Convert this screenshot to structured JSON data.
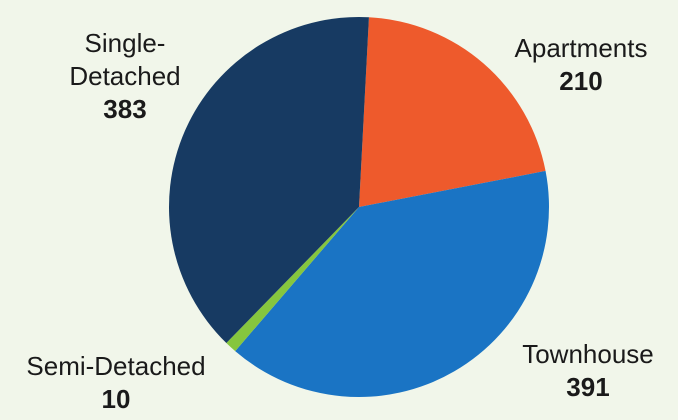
{
  "chart_data": {
    "type": "pie",
    "slices": [
      {
        "label": "Apartments",
        "value": 210,
        "color": "#ee5a2c"
      },
      {
        "label": "Townhouse",
        "value": 391,
        "color": "#1a74c4"
      },
      {
        "label": "Semi-Detached",
        "value": 10,
        "color": "#86c63e"
      },
      {
        "label": "Single-Detached",
        "value": 383,
        "color": "#173a62"
      }
    ],
    "value_labels": [
      "210",
      "391",
      "10",
      "383"
    ],
    "label_lines": {
      "single": [
        "Single-",
        "Detached"
      ]
    },
    "start_angle_deg": 3,
    "direction": "clockwise"
  }
}
